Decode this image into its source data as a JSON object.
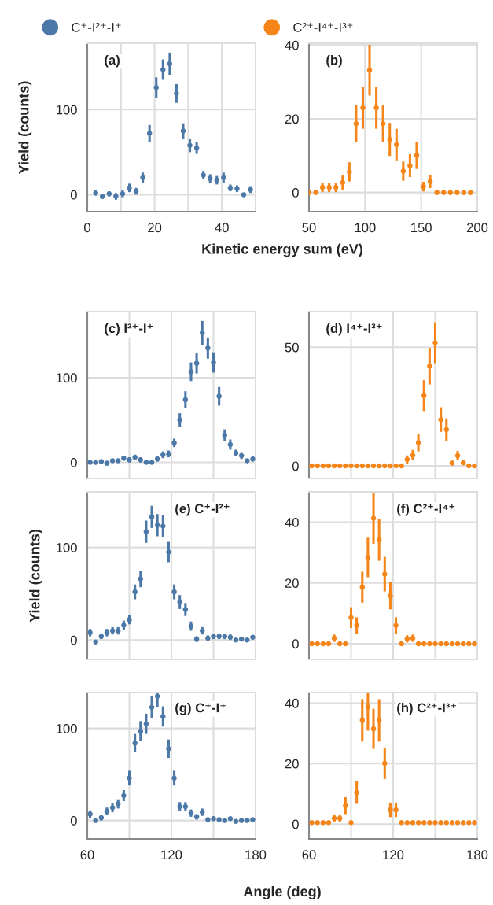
{
  "chart_data": [
    {
      "type": "scatter",
      "title": "(a)",
      "ylabel": "Yield (counts)",
      "xlabel": "Kinetic energy sum (eV)",
      "legend": "top left",
      "marker": "circle",
      "grid": true,
      "x": [
        2.5,
        4.5,
        6.5,
        8.5,
        10.5,
        12.5,
        14.5,
        16.5,
        18.5,
        20.5,
        22.5,
        24.5,
        26.5,
        28.5,
        30.5,
        32.5,
        34.5,
        36.5,
        38.5,
        40.5,
        42.5,
        44.5,
        46.5,
        48.5
      ],
      "series": [
        {
          "name": "C⁺-I²⁺-I⁺",
          "color": "#4c78a8",
          "values": [
            2,
            -2,
            1,
            -2,
            1,
            8,
            4,
            20,
            72,
            126,
            147,
            154,
            119,
            75,
            58,
            55,
            23,
            19,
            17,
            20,
            8,
            7,
            0,
            6
          ],
          "errors": [
            3,
            3,
            3,
            4,
            4,
            5,
            4,
            6,
            10,
            12,
            12,
            13,
            11,
            9,
            8,
            7,
            5,
            5,
            5,
            6,
            4,
            4,
            2,
            4
          ]
        }
      ],
      "xlim": [
        0,
        50
      ],
      "ylim": [
        -20,
        178
      ],
      "xticks": [
        0,
        {
          "value": 10,
          "label": null
        },
        20,
        {
          "value": 30,
          "label": null
        },
        40
      ],
      "yticks": [
        0,
        100
      ]
    },
    {
      "type": "scatter",
      "title": "(b)",
      "legend": "top left",
      "marker": "circle",
      "grid": true,
      "x": [
        50,
        56,
        62,
        68,
        74,
        80,
        86,
        92,
        98,
        104,
        110,
        116,
        122,
        128,
        134,
        140,
        146,
        152,
        158,
        164,
        170,
        176,
        182,
        188,
        194
      ],
      "series": [
        {
          "name": "C²⁺-I⁴⁺-I³⁺",
          "color": "#f58518",
          "values": [
            0,
            0,
            1.4,
            1.4,
            1.4,
            2.7,
            5.6,
            18.7,
            23,
            33.2,
            23,
            18.7,
            14.4,
            13,
            5.8,
            7.3,
            10.1,
            1.6,
            3,
            0,
            0,
            0,
            0,
            0,
            0
          ],
          "errors": [
            null,
            null,
            1.3,
            1.3,
            1.3,
            1.9,
            2.6,
            5.1,
            5.7,
            6.9,
            5.7,
            5.1,
            4.5,
            4.3,
            2.6,
            3.1,
            3.7,
            1.3,
            1.8,
            null,
            null,
            null,
            null,
            null,
            null
          ]
        }
      ],
      "xlim": [
        50,
        200
      ],
      "ylim": [
        -5.2,
        40.5
      ],
      "xticks": [
        50,
        100,
        150,
        200
      ],
      "yticks": [
        0,
        20,
        40
      ]
    },
    {
      "type": "scatter",
      "title": "(c) I²⁺-I⁺",
      "marker": "circle",
      "grid": true,
      "tick_labels": "y",
      "x": [
        62,
        66,
        70,
        74,
        78,
        82,
        86,
        90,
        94,
        98,
        102,
        106,
        110,
        114,
        118,
        122,
        126,
        130,
        134,
        138,
        142,
        146,
        150,
        154,
        158,
        162,
        166,
        170,
        174,
        178
      ],
      "series": [
        {
          "color": "#4c78a8",
          "values": [
            0,
            0,
            1,
            -1,
            2,
            2,
            5,
            3,
            6,
            3,
            0,
            0,
            4,
            9,
            10,
            23,
            50,
            74,
            107,
            117,
            153,
            135,
            118,
            78,
            32,
            21,
            11,
            8,
            2,
            4
          ],
          "errors": [
            2,
            2,
            2,
            2,
            2,
            2,
            3,
            3,
            3,
            3,
            2,
            2,
            3,
            4,
            4,
            5,
            8,
            10,
            11,
            12,
            14,
            12.5,
            12,
            11,
            7,
            6,
            4,
            4,
            2,
            3
          ]
        }
      ],
      "xlim": [
        60,
        180
      ],
      "ylim": [
        -19,
        178
      ],
      "xticks": [
        60,
        {
          "value": 90,
          "label": null
        },
        120,
        {
          "value": 150,
          "label": null
        },
        180
      ],
      "yticks": [
        0,
        100
      ]
    },
    {
      "type": "scatter",
      "title": "(d) I⁴⁺-I³⁺",
      "marker": "circle",
      "grid": true,
      "tick_labels": "y",
      "x": [
        62,
        66,
        70,
        74,
        78,
        82,
        86,
        90,
        94,
        98,
        102,
        106,
        110,
        114,
        118,
        122,
        126,
        130,
        134,
        138,
        142,
        146,
        150,
        154,
        158,
        162,
        166,
        170,
        174,
        178
      ],
      "series": [
        {
          "color": "#f58518",
          "values": [
            0,
            0,
            0,
            0,
            0,
            0,
            0,
            0,
            0,
            0,
            0,
            0,
            0,
            0,
            0,
            0,
            0,
            2.7,
            4.5,
            9.8,
            29.6,
            42,
            51.9,
            19.5,
            15.3,
            1.2,
            4.3,
            1.3,
            0,
            0
          ],
          "errors": [
            null,
            null,
            null,
            null,
            null,
            null,
            null,
            null,
            null,
            null,
            null,
            null,
            null,
            null,
            null,
            null,
            null,
            1.7,
            2.2,
            3.7,
            6.5,
            7.7,
            8.6,
            5.2,
            4.7,
            1,
            2,
            1,
            null,
            null
          ]
        }
      ],
      "xlim": [
        60,
        180
      ],
      "ylim": [
        -5.3,
        65
      ],
      "xticks": [
        60,
        {
          "value": 90,
          "label": null
        },
        120,
        {
          "value": 150,
          "label": null
        },
        180
      ],
      "yticks": [
        0,
        50
      ]
    },
    {
      "type": "scatter",
      "title": "(e) C⁺-I²⁺",
      "ylabel": "Yield (counts)",
      "marker": "circle",
      "grid": true,
      "tick_labels": "y",
      "x": [
        62,
        66,
        70,
        74,
        78,
        82,
        86,
        90,
        94,
        98,
        102,
        106,
        110,
        114,
        118,
        122,
        126,
        130,
        134,
        138,
        142,
        146,
        150,
        154,
        158,
        162,
        166,
        170,
        174,
        178
      ],
      "series": [
        {
          "color": "#4c78a8",
          "values": [
            8,
            -2,
            4,
            8,
            10,
            10,
            16,
            22,
            52,
            66,
            117,
            133,
            124,
            123,
            95,
            52,
            41,
            33,
            15,
            1,
            10,
            2,
            4,
            4,
            4,
            3,
            0,
            1,
            0,
            3
          ],
          "errors": [
            4,
            2,
            3,
            4,
            4,
            4,
            5,
            5,
            8,
            9,
            12,
            12,
            12,
            12,
            11,
            8,
            7.5,
            7,
            5,
            3,
            4,
            3,
            3,
            3,
            3,
            3,
            2,
            2,
            2,
            2
          ]
        }
      ],
      "xlim": [
        60,
        180
      ],
      "ylim": [
        -21,
        160
      ],
      "xticks": [
        60,
        {
          "value": 90,
          "label": null
        },
        120,
        {
          "value": 150,
          "label": null
        },
        180
      ],
      "yticks": [
        0,
        100
      ]
    },
    {
      "type": "scatter",
      "title": "(f) C²⁺-I⁴⁺",
      "marker": "circle",
      "grid": true,
      "tick_labels": "y",
      "x": [
        62,
        66,
        70,
        74,
        78,
        82,
        86,
        90,
        94,
        98,
        102,
        106,
        110,
        114,
        118,
        122,
        126,
        130,
        134,
        138,
        142,
        146,
        150,
        154,
        158,
        162,
        166,
        170,
        174,
        178
      ],
      "series": [
        {
          "color": "#f58518",
          "values": [
            0,
            0,
            0,
            0,
            1.8,
            0,
            0,
            8.6,
            6,
            18.6,
            28.4,
            41.3,
            34.2,
            22.9,
            15.8,
            6,
            0,
            1.6,
            1.8,
            0,
            0,
            0,
            0,
            0,
            0,
            0,
            0,
            0,
            0,
            0
          ],
          "errors": [
            null,
            null,
            null,
            null,
            1.2,
            null,
            null,
            3.4,
            2.7,
            5.1,
            6.5,
            8.4,
            6.9,
            5.7,
            4.5,
            2.7,
            null,
            1.2,
            1.2,
            null,
            null,
            null,
            null,
            null,
            null,
            null,
            null,
            null,
            null,
            null
          ]
        }
      ],
      "xlim": [
        60,
        180
      ],
      "ylim": [
        -5.2,
        50
      ],
      "xticks": [
        60,
        {
          "value": 90,
          "label": null
        },
        120,
        {
          "value": 150,
          "label": null
        },
        180
      ],
      "yticks": [
        0,
        20,
        40
      ]
    },
    {
      "type": "scatter",
      "title": "(g) C⁺-I⁺",
      "xlabel": "Angle (deg)",
      "marker": "circle",
      "grid": true,
      "x": [
        62,
        66,
        70,
        74,
        78,
        82,
        86,
        90,
        94,
        98,
        102,
        106,
        110,
        114,
        118,
        122,
        126,
        130,
        134,
        138,
        142,
        146,
        150,
        154,
        158,
        162,
        166,
        170,
        174,
        178
      ],
      "series": [
        {
          "color": "#4c78a8",
          "values": [
            7,
            0,
            3,
            10,
            14,
            18,
            27,
            46,
            84,
            97,
            105,
            123,
            135,
            113,
            78,
            46,
            15,
            15,
            8,
            4,
            9,
            1,
            2,
            1,
            0,
            2,
            -1,
            0,
            0,
            1
          ],
          "errors": [
            4,
            2,
            3,
            4,
            5,
            5,
            6,
            8,
            10,
            11,
            11,
            12,
            12,
            11,
            10,
            8,
            5,
            5,
            4,
            3,
            4,
            2,
            2,
            2,
            2,
            2,
            2,
            2,
            2,
            2
          ]
        }
      ],
      "xlim": [
        60,
        180
      ],
      "ylim": [
        -20,
        139
      ],
      "xticks": [
        60,
        {
          "value": 90,
          "label": null
        },
        120,
        {
          "value": 150,
          "label": null
        },
        180
      ],
      "yticks": [
        0,
        100
      ]
    },
    {
      "type": "scatter",
      "title": "(h) C²⁺-I³⁺",
      "marker": "circle",
      "grid": true,
      "x": [
        62,
        66,
        70,
        74,
        78,
        82,
        86,
        90,
        94,
        98,
        102,
        106,
        110,
        114,
        118,
        122,
        126,
        130,
        134,
        138,
        142,
        146,
        150,
        154,
        158,
        162,
        166,
        170,
        174,
        178
      ],
      "series": [
        {
          "color": "#f58518",
          "values": [
            0.5,
            0.5,
            0.5,
            0.5,
            1.9,
            1.9,
            6.1,
            0.5,
            10.4,
            34.3,
            38.7,
            31.5,
            34.3,
            20.1,
            4.7,
            4.7,
            0.5,
            0.5,
            0.5,
            0.5,
            0.5,
            0.5,
            0.5,
            0.5,
            0.5,
            0.5,
            0.5,
            0.5,
            0.5,
            0.5
          ],
          "errors": [
            null,
            null,
            null,
            null,
            1.3,
            1.3,
            2.8,
            null,
            3.7,
            7,
            7.8,
            6.6,
            7,
            5.2,
            2.4,
            2.4,
            null,
            null,
            null,
            null,
            null,
            null,
            null,
            null,
            null,
            null,
            null,
            null,
            null,
            null
          ]
        }
      ],
      "xlim": [
        60,
        180
      ],
      "ylim": [
        -4.9,
        43.5
      ],
      "xticks": [
        60,
        {
          "value": 90,
          "label": null
        },
        120,
        {
          "value": 150,
          "label": null
        },
        180
      ],
      "yticks": [
        0,
        20,
        40
      ]
    }
  ]
}
